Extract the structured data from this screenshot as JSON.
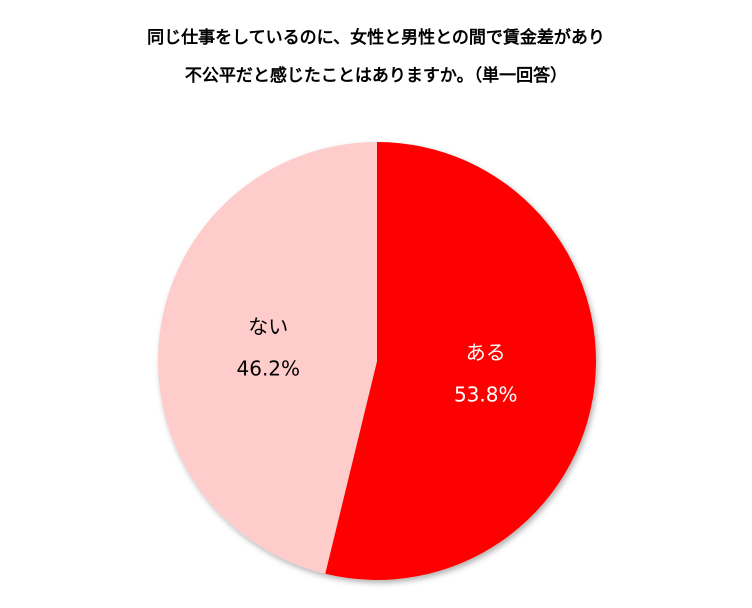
{
  "chart_data": {
    "type": "pie",
    "title": [
      "同じ仕事をしているのに、女性と男性との間で賃金差があり",
      "不公平だと感じたことはありますか。（単一回答）"
    ],
    "categories": [
      "ある",
      "ない"
    ],
    "values": [
      53.8,
      46.2
    ],
    "value_labels": [
      "53.8%",
      "46.2%"
    ],
    "colors": [
      "#ff0000",
      "#ffcccc"
    ],
    "label_colors": [
      "#ffffff",
      "#000000"
    ]
  }
}
